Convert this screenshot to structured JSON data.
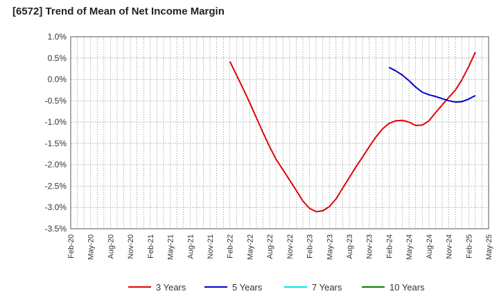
{
  "chart_data": {
    "type": "line",
    "title": "[6572]  Trend of Mean of Net Income Margin",
    "xlabel": "",
    "ylabel": "",
    "x_ticks": [
      "Feb-20",
      "May-20",
      "Aug-20",
      "Nov-20",
      "Feb-21",
      "May-21",
      "Aug-21",
      "Nov-21",
      "Feb-22",
      "May-22",
      "Aug-22",
      "Nov-22",
      "Feb-23",
      "May-23",
      "Aug-23",
      "Nov-23",
      "Feb-24",
      "May-24",
      "Aug-24",
      "Nov-24",
      "Feb-25",
      "May-25"
    ],
    "y_ticks": [
      "1.0%",
      "0.5%",
      "0.0%",
      "-0.5%",
      "-1.0%",
      "-1.5%",
      "-2.0%",
      "-2.5%",
      "-3.0%",
      "-3.5%"
    ],
    "ylim": [
      -3.5,
      1.0
    ],
    "grid": true,
    "legend_position": "bottom",
    "series": [
      {
        "name": "3 Years",
        "color": "#e00000",
        "points": [
          [
            "Feb-22",
            0.42
          ],
          [
            "Mar-22",
            0.1
          ],
          [
            "Apr-22",
            -0.22
          ],
          [
            "May-22",
            -0.55
          ],
          [
            "Jun-22",
            -0.9
          ],
          [
            "Jul-22",
            -1.25
          ],
          [
            "Aug-22",
            -1.58
          ],
          [
            "Sep-22",
            -1.88
          ],
          [
            "Oct-22",
            -2.12
          ],
          [
            "Nov-22",
            -2.36
          ],
          [
            "Dec-22",
            -2.6
          ],
          [
            "Jan-23",
            -2.85
          ],
          [
            "Feb-23",
            -3.02
          ],
          [
            "Mar-23",
            -3.1
          ],
          [
            "Apr-23",
            -3.08
          ],
          [
            "May-23",
            -2.98
          ],
          [
            "Jun-23",
            -2.8
          ],
          [
            "Jul-23",
            -2.55
          ],
          [
            "Aug-23",
            -2.3
          ],
          [
            "Sep-23",
            -2.05
          ],
          [
            "Oct-23",
            -1.82
          ],
          [
            "Nov-23",
            -1.58
          ],
          [
            "Dec-23",
            -1.35
          ],
          [
            "Jan-24",
            -1.16
          ],
          [
            "Feb-24",
            -1.03
          ],
          [
            "Mar-24",
            -0.97
          ],
          [
            "Apr-24",
            -0.96
          ],
          [
            "May-24",
            -1.0
          ],
          [
            "Jun-24",
            -1.08
          ],
          [
            "Jul-24",
            -1.07
          ],
          [
            "Aug-24",
            -0.97
          ],
          [
            "Sep-24",
            -0.78
          ],
          [
            "Oct-24",
            -0.6
          ],
          [
            "Nov-24",
            -0.42
          ],
          [
            "Dec-24",
            -0.25
          ],
          [
            "Jan-25",
            0.0
          ],
          [
            "Feb-25",
            0.3
          ],
          [
            "Mar-25",
            0.64
          ]
        ]
      },
      {
        "name": "5 Years",
        "color": "#0000cc",
        "points": [
          [
            "Feb-24",
            0.28
          ],
          [
            "Mar-24",
            0.2
          ],
          [
            "Apr-24",
            0.1
          ],
          [
            "May-24",
            -0.03
          ],
          [
            "Jun-24",
            -0.18
          ],
          [
            "Jul-24",
            -0.3
          ],
          [
            "Aug-24",
            -0.36
          ],
          [
            "Sep-24",
            -0.4
          ],
          [
            "Oct-24",
            -0.45
          ],
          [
            "Nov-24",
            -0.5
          ],
          [
            "Dec-24",
            -0.53
          ],
          [
            "Jan-25",
            -0.52
          ],
          [
            "Feb-25",
            -0.46
          ],
          [
            "Mar-25",
            -0.38
          ]
        ]
      },
      {
        "name": "7 Years",
        "color": "#00e5e5",
        "points": []
      },
      {
        "name": "10 Years",
        "color": "#008000",
        "points": []
      }
    ]
  }
}
